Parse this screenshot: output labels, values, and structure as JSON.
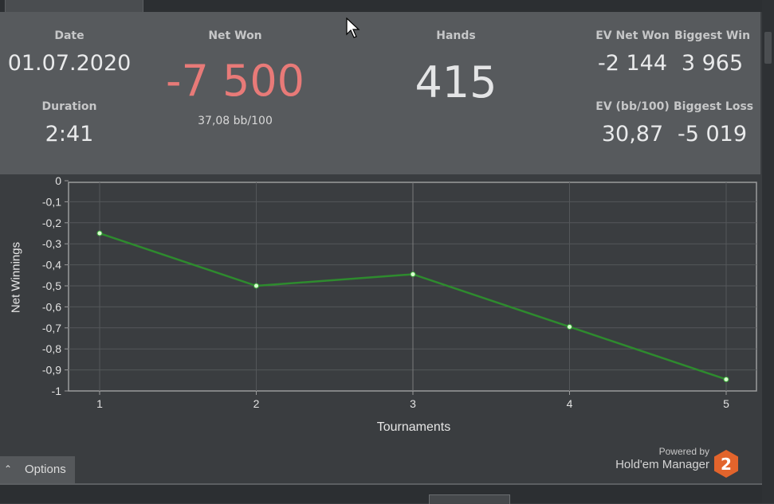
{
  "stats": {
    "date": {
      "label": "Date",
      "value": "01.07.2020"
    },
    "duration": {
      "label": "Duration",
      "value": "2:41"
    },
    "net_won": {
      "label": "Net Won",
      "value": "-7 500",
      "sub": "37,08 bb/100",
      "color": "#e87a78"
    },
    "hands": {
      "label": "Hands",
      "value": "415"
    },
    "ev_net_won": {
      "label": "EV Net Won",
      "value": "-2 144"
    },
    "biggest_win": {
      "label": "Biggest Win",
      "value": "3 965"
    },
    "ev_bb100": {
      "label": "EV (bb/100)",
      "value": "30,87"
    },
    "biggest_loss": {
      "label": "Biggest Loss",
      "value": "-5 019"
    }
  },
  "chart_data": {
    "type": "line",
    "xlabel": "Tournaments",
    "ylabel": "Net Winnings",
    "x": [
      1,
      2,
      3,
      4,
      5
    ],
    "x_ticks": [
      "1",
      "2",
      "3",
      "4",
      "5"
    ],
    "y_ticks": [
      "0",
      "-0,1",
      "-0,2",
      "-0,3",
      "-0,4",
      "-0,5",
      "-0,6",
      "-0,7",
      "-0,8",
      "-0,9",
      "-1"
    ],
    "ylim": [
      -1,
      0
    ],
    "grid": true,
    "series": [
      {
        "values": [
          -0.25,
          -0.5,
          -0.445,
          -0.695,
          -0.945
        ],
        "color": "#2e8b2e"
      }
    ]
  },
  "options": {
    "label": "Options"
  },
  "branding": {
    "powered_by": "Powered by",
    "product": "Hold'em Manager",
    "logo_number": "2",
    "logo_color": "#e2642c"
  }
}
